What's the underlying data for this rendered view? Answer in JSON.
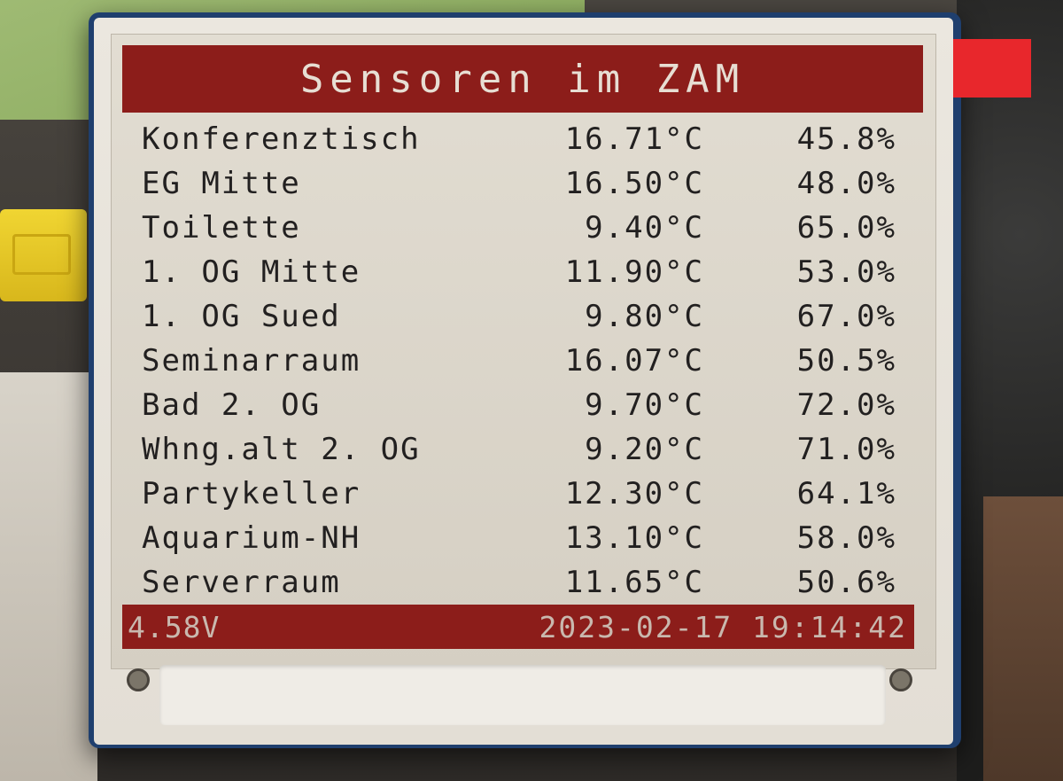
{
  "title": "Sensoren im ZAM",
  "sensors": [
    {
      "name": "Konferenztisch",
      "temp": "16.71°C",
      "humidity": "45.8%"
    },
    {
      "name": "EG Mitte",
      "temp": "16.50°C",
      "humidity": "48.0%"
    },
    {
      "name": "Toilette",
      "temp": "9.40°C",
      "humidity": "65.0%"
    },
    {
      "name": "1. OG Mitte",
      "temp": "11.90°C",
      "humidity": "53.0%"
    },
    {
      "name": "1. OG Sued",
      "temp": "9.80°C",
      "humidity": "67.0%"
    },
    {
      "name": "Seminarraum",
      "temp": "16.07°C",
      "humidity": "50.5%"
    },
    {
      "name": "Bad 2. OG",
      "temp": "9.70°C",
      "humidity": "72.0%"
    },
    {
      "name": "Whng.alt 2. OG",
      "temp": "9.20°C",
      "humidity": "71.0%"
    },
    {
      "name": "Partykeller",
      "temp": "12.30°C",
      "humidity": "64.1%"
    },
    {
      "name": "Aquarium-NH",
      "temp": "13.10°C",
      "humidity": "58.0%"
    },
    {
      "name": "Serverraum",
      "temp": "11.65°C",
      "humidity": "50.6%"
    }
  ],
  "footer": {
    "voltage": "4.58V",
    "datetime": "2023-02-17 19:14:42"
  },
  "colors": {
    "accent_red": "#8c1d1a",
    "screen": "#dcd6ca",
    "text": "#222020"
  }
}
